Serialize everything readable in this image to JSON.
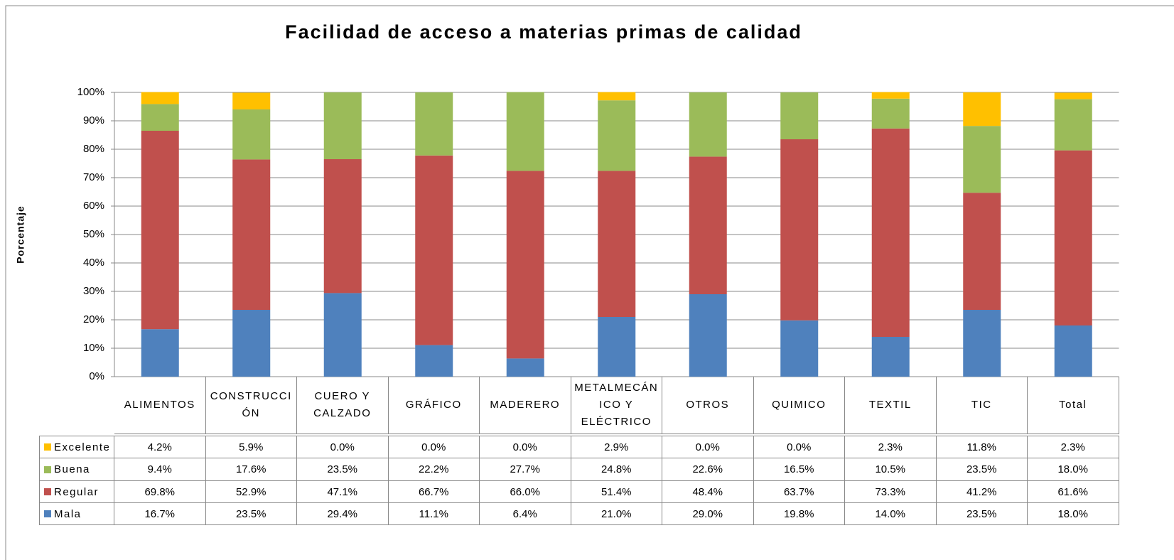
{
  "chart_data": {
    "type": "stacked_bar",
    "title": "Facilidad de acceso a materias primas de calidad",
    "y_label": "Porcentaje",
    "categories": [
      "ALIMENTOS",
      "CONSTRUCCIÓN",
      "CUERO Y CALZADO",
      "GRÁFICO",
      "MADERERO",
      "METALMECÁNICO Y ELÉCTRICO",
      "OTROS",
      "QUIMICO",
      "TEXTIL",
      "TIC",
      "Total"
    ],
    "series": [
      {
        "name": "Mala",
        "color": "#4f81bd",
        "values": [
          16.7,
          23.5,
          29.4,
          11.1,
          6.4,
          21.0,
          29.0,
          19.8,
          14.0,
          23.5,
          18.0
        ],
        "value_labels": [
          "16.7%",
          "23.5%",
          "29.4%",
          "11.1%",
          "6.4%",
          "21.0%",
          "29.0%",
          "19.8%",
          "14.0%",
          "23.5%",
          "18.0%"
        ]
      },
      {
        "name": "Regular",
        "color": "#c0504d",
        "values": [
          69.8,
          52.9,
          47.1,
          66.7,
          66.0,
          51.4,
          48.4,
          63.7,
          73.3,
          41.2,
          61.6
        ],
        "value_labels": [
          "69.8%",
          "52.9%",
          "47.1%",
          "66.7%",
          "66.0%",
          "51.4%",
          "48.4%",
          "63.7%",
          "73.3%",
          "41.2%",
          "61.6%"
        ]
      },
      {
        "name": "Buena",
        "color": "#9bbb59",
        "values": [
          9.4,
          17.6,
          23.5,
          22.2,
          27.7,
          24.8,
          22.6,
          16.5,
          10.5,
          23.5,
          18.0
        ],
        "value_labels": [
          "9.4%",
          "17.6%",
          "23.5%",
          "22.2%",
          "27.7%",
          "24.8%",
          "22.6%",
          "16.5%",
          "10.5%",
          "23.5%",
          "18.0%"
        ]
      },
      {
        "name": "Excelente",
        "color": "#ffc000",
        "values": [
          4.2,
          5.9,
          0.0,
          0.0,
          0.0,
          2.9,
          0.0,
          0.0,
          2.3,
          11.8,
          2.3
        ],
        "value_labels": [
          "4.2%",
          "5.9%",
          "0.0%",
          "0.0%",
          "0.0%",
          "2.9%",
          "0.0%",
          "0.0%",
          "2.3%",
          "11.8%",
          "2.3%"
        ]
      }
    ],
    "ylim": [
      0,
      100
    ],
    "yticks": [
      {
        "value": 0,
        "label": "0%"
      },
      {
        "value": 10,
        "label": "10%"
      },
      {
        "value": 20,
        "label": "20%"
      },
      {
        "value": 30,
        "label": "30%"
      },
      {
        "value": 40,
        "label": "40%"
      },
      {
        "value": 50,
        "label": "50%"
      },
      {
        "value": 60,
        "label": "60%"
      },
      {
        "value": 70,
        "label": "70%"
      },
      {
        "value": 80,
        "label": "80%"
      },
      {
        "value": 90,
        "label": "90%"
      },
      {
        "value": 100,
        "label": "100%"
      }
    ],
    "grid": true
  }
}
